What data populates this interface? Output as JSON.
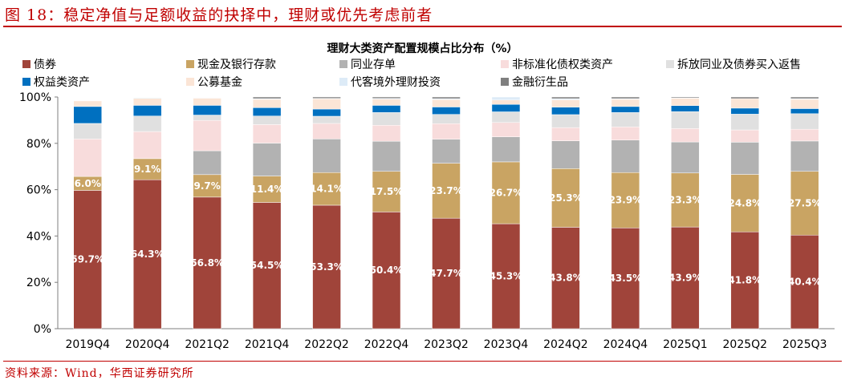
{
  "figure_title": "图 18：稳定净值与足额收益的抉择中，理财或优先考虑前者",
  "source": "资料来源：Wind，华西证券研究所",
  "chart_data": {
    "type": "bar",
    "stacked": true,
    "title": "理财大类资产配置规模占比分布（%）",
    "xlabel": "",
    "ylabel": "",
    "ylim": [
      0,
      100
    ],
    "yticks": [
      "0%",
      "20%",
      "40%",
      "60%",
      "80%",
      "100%"
    ],
    "grid": false,
    "legend_position": "top",
    "categories": [
      "2019Q4",
      "2020Q4",
      "2021Q2",
      "2021Q4",
      "2022Q2",
      "2022Q4",
      "2023Q2",
      "2023Q4",
      "2024Q2",
      "2024Q4",
      "2025Q1",
      "2025Q2",
      "2025Q3"
    ],
    "series": [
      {
        "name": "债券",
        "color": "#A0443A",
        "labeled": true,
        "values": [
          59.7,
          64.3,
          56.8,
          54.5,
          53.3,
          50.4,
          47.7,
          45.3,
          43.8,
          43.5,
          43.9,
          41.8,
          40.4
        ]
      },
      {
        "name": "现金及银行存款",
        "color": "#C9A463",
        "labeled": true,
        "values": [
          6.0,
          9.1,
          9.7,
          11.4,
          14.1,
          17.5,
          23.7,
          26.7,
          25.3,
          23.9,
          23.3,
          24.8,
          27.5
        ]
      },
      {
        "name": "同业存单",
        "color": "#B2B2B2",
        "values": [
          0,
          0,
          10.3,
          14.2,
          14.5,
          13.0,
          10.4,
          10.8,
          12.0,
          14.0,
          13.4,
          13.9,
          13.1
        ]
      },
      {
        "name": "非标准化债权类资产",
        "color": "#F8DCDC",
        "values": [
          16.2,
          11.7,
          13.1,
          8.0,
          6.7,
          6.9,
          6.7,
          6.2,
          5.7,
          5.7,
          5.8,
          5.3,
          5.1
        ]
      },
      {
        "name": "拆放同业及债券买入返售",
        "color": "#E0E0E0",
        "values": [
          6.7,
          6.7,
          2.3,
          3.7,
          3.1,
          5.5,
          4.0,
          4.6,
          5.6,
          6.2,
          7.3,
          6.8,
          6.7
        ]
      },
      {
        "name": "权益类资产",
        "color": "#0070C0",
        "values": [
          7.3,
          4.6,
          4.2,
          3.6,
          3.1,
          3.1,
          3.2,
          3.2,
          3.2,
          2.6,
          2.6,
          2.6,
          2.2
        ]
      },
      {
        "name": "公募基金",
        "color": "#FBE5D6",
        "values": [
          2.4,
          3.0,
          3.1,
          3.6,
          4.4,
          2.7,
          3.2,
          1.9,
          3.2,
          3.1,
          3.1,
          4.1,
          4.0
        ]
      },
      {
        "name": "代客境外理财投资",
        "color": "#DDEBF7",
        "values": [
          0,
          0.3,
          0.2,
          0.3,
          0.2,
          0.3,
          0.4,
          1.3,
          0.5,
          0.3,
          0.2,
          0,
          0.3
        ]
      },
      {
        "name": "金融衍生品",
        "color": "#7F7F7F",
        "values": [
          0,
          0,
          0,
          0.7,
          0.6,
          0.6,
          0.7,
          0,
          0.7,
          0.7,
          0.4,
          0.7,
          0.7
        ]
      }
    ]
  }
}
